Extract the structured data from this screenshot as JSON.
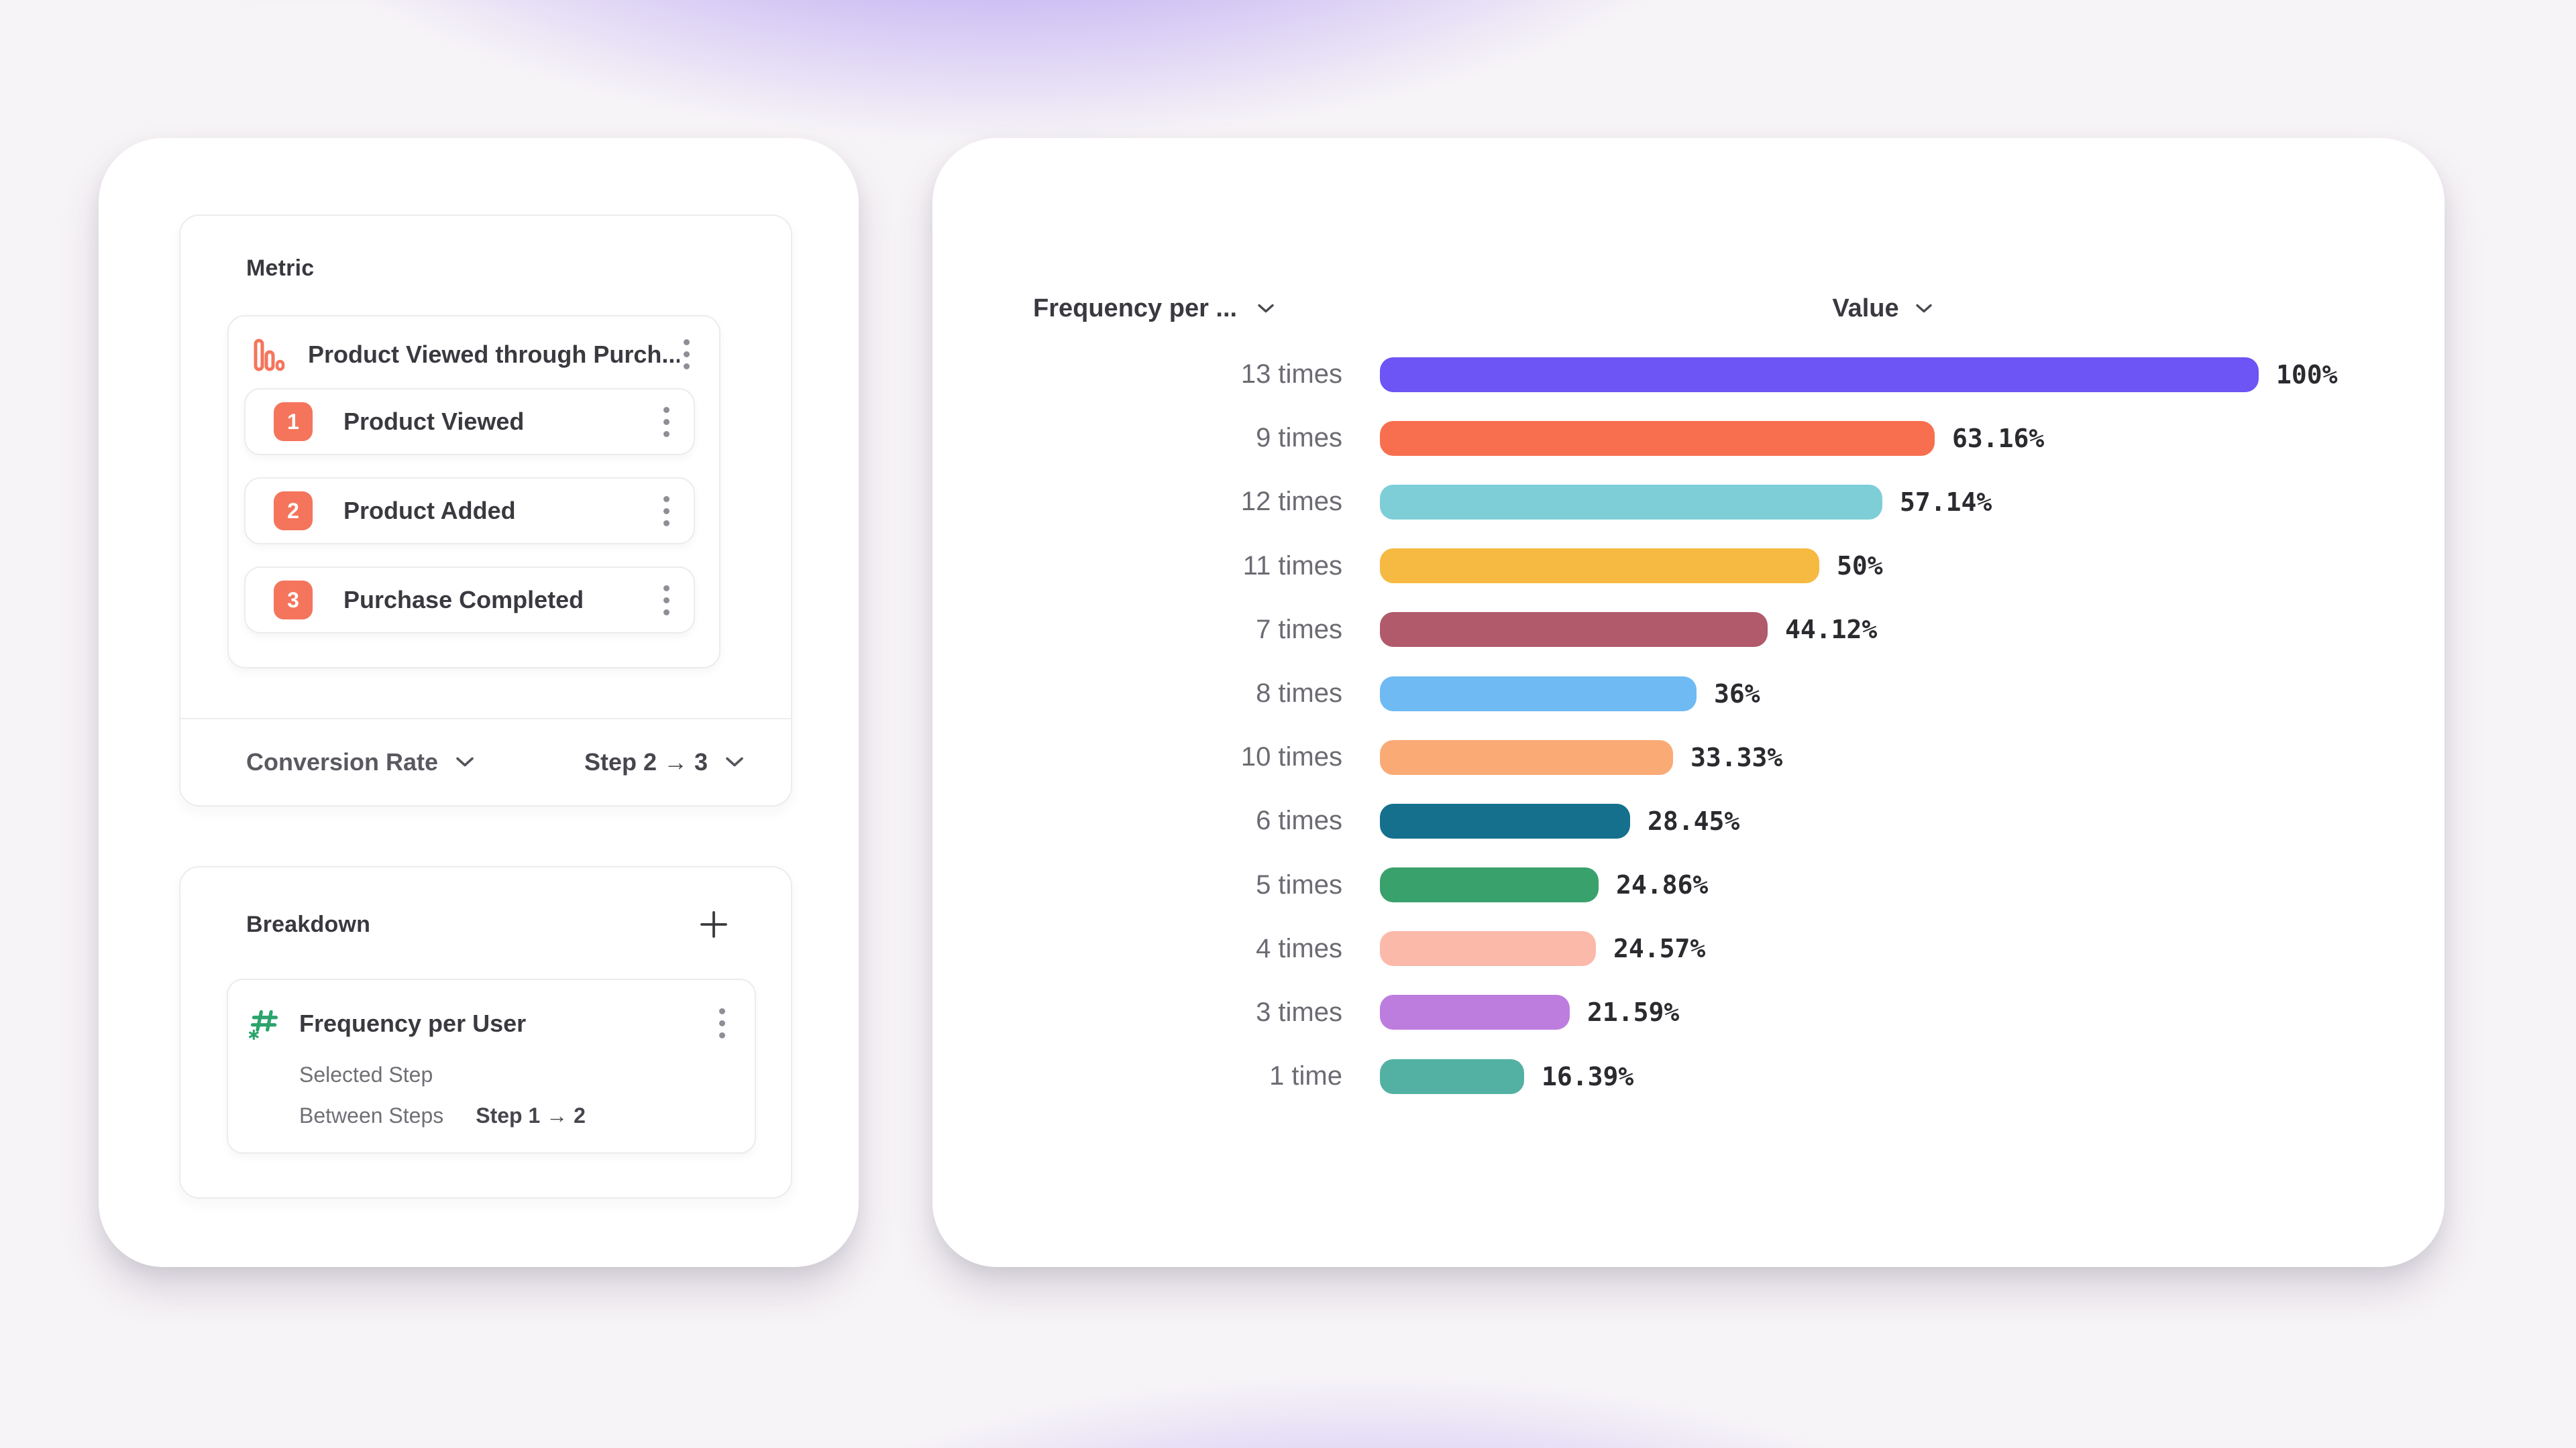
{
  "left_panel": {
    "metric_section": {
      "title": "Metric",
      "funnel": {
        "title": "Product Viewed through Purch...",
        "steps": [
          {
            "number": "1",
            "label": "Product Viewed"
          },
          {
            "number": "2",
            "label": "Product Added"
          },
          {
            "number": "3",
            "label": "Purchase Completed"
          }
        ]
      },
      "footer": {
        "measurement_label": "Conversion Rate",
        "step_range_label": "Step 2 → 3"
      }
    },
    "breakdown_section": {
      "title": "Breakdown",
      "item": {
        "title": "Frequency per User",
        "row_selected_step": "Selected Step",
        "row_between_steps": "Between Steps",
        "between_steps_value": "Step 1 → 2"
      }
    }
  },
  "chart_panel": {
    "col1_header": "Frequency per ...",
    "col2_header": "Value"
  },
  "chart_data": {
    "type": "bar",
    "orientation": "horizontal",
    "title": "Frequency per User breakdown",
    "xlabel": "Value",
    "ylabel": "Frequency per User",
    "xlim": [
      0,
      100
    ],
    "grid": false,
    "categories": [
      "13 times",
      "9 times",
      "12 times",
      "11 times",
      "7 times",
      "8 times",
      "10 times",
      "6 times",
      "5 times",
      "4 times",
      "3 times",
      "1 time"
    ],
    "values": [
      100,
      63.16,
      57.14,
      50,
      44.12,
      36,
      33.33,
      28.45,
      24.86,
      24.57,
      21.59,
      16.39
    ],
    "value_labels": [
      "100%",
      "63.16%",
      "57.14%",
      "50%",
      "44.12%",
      "36%",
      "33.33%",
      "28.45%",
      "24.86%",
      "24.57%",
      "21.59%",
      "16.39%"
    ],
    "bar_colors": [
      "#6C54F5",
      "#F76F4E",
      "#7ECED7",
      "#F6B942",
      "#B15A6C",
      "#6FBAF3",
      "#FAAA75",
      "#15708E",
      "#39A16B",
      "#FBB9AA",
      "#BD7DDF",
      "#53B1A3"
    ]
  },
  "colors": {
    "accent_orange": "#F4755C",
    "accent_green": "#2BA46C",
    "card_background": "#FFFFFF",
    "background_purple": "#7E58EE",
    "text_dark": "#39383E",
    "text_secondary": "#716F76",
    "kebab_gray": "#8F8E96"
  },
  "icons": [
    "funnel-chart-icon",
    "kebab-menu-icon",
    "chevron-down-icon",
    "plus-icon",
    "numeric-breakdown-icon"
  ]
}
